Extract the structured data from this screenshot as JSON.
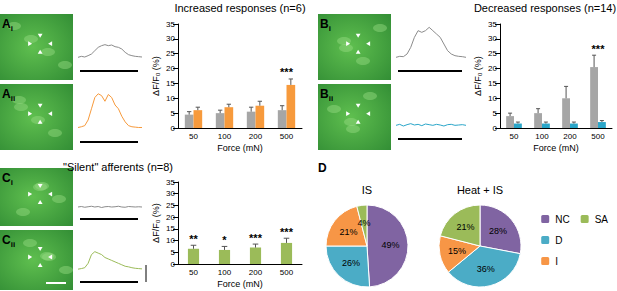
{
  "panel_labels": [
    {
      "letter": "A",
      "sub": "i"
    },
    {
      "letter": "A",
      "sub": "ii"
    },
    {
      "letter": "B",
      "sub": "i"
    },
    {
      "letter": "B",
      "sub": "ii"
    },
    {
      "letter": "C",
      "sub": "i"
    },
    {
      "letter": "C",
      "sub": "ii"
    },
    {
      "letter": "D"
    }
  ],
  "chart_data": [
    {
      "type": "line",
      "color": "#8c8c8c",
      "tick_labels": false,
      "ylim": [
        -2,
        10
      ],
      "values": [
        0,
        0.3,
        0.1,
        0.5,
        1,
        2,
        3,
        3.5,
        3.8,
        3.5,
        3.7,
        3.2,
        3,
        2.5,
        1.5,
        0.8,
        0.5,
        0.3,
        0.2,
        0.1
      ]
    },
    {
      "type": "line",
      "color": "#f79a3c",
      "tick_labels": false,
      "ylim": [
        -2,
        10
      ],
      "values": [
        0,
        0.2,
        0.5,
        2,
        5,
        8,
        9,
        8.5,
        7,
        8.8,
        8,
        6,
        5,
        3,
        1.5,
        0.5,
        0.2,
        0.1,
        0,
        0
      ]
    },
    {
      "type": "line",
      "color": "#8c8c8c",
      "tick_labels": false,
      "ylim": [
        -2,
        10
      ],
      "values": [
        0,
        0.3,
        0.2,
        1,
        3,
        6,
        8,
        7.5,
        8,
        9,
        8,
        7,
        6,
        4,
        2,
        1,
        0.5,
        0.3,
        0.2,
        0
      ]
    },
    {
      "type": "line",
      "color": "#2aa6c9",
      "tick_labels": false,
      "ylim": [
        -2,
        10
      ],
      "values": [
        0,
        0.3,
        -0.2,
        0.2,
        0.5,
        0.1,
        0.3,
        -0.1,
        0.4,
        0.2,
        0,
        0.3,
        0.1,
        -0.2,
        0.2,
        0.3,
        0,
        0.1,
        0.2,
        0
      ]
    },
    {
      "type": "line",
      "color": "#8c8c8c",
      "tick_labels": false,
      "ylim": [
        -2,
        10
      ],
      "values": [
        0,
        0.2,
        -0.1,
        0.1,
        0.3,
        0,
        0.2,
        -0.2,
        0.1,
        0.2,
        0,
        0.1,
        0.3,
        0,
        -0.1,
        0.2,
        0.1,
        0,
        0.1,
        0
      ]
    },
    {
      "type": "line",
      "color": "#9bbb59",
      "tick_labels": false,
      "ylim": [
        -2,
        10
      ],
      "values": [
        0,
        0.2,
        0.5,
        2,
        5,
        6,
        5.5,
        5,
        4,
        3.5,
        3,
        2.5,
        2,
        1.5,
        1,
        0.8,
        0.5,
        0.3,
        0.2,
        0.1
      ]
    },
    {
      "type": "bar",
      "title": "Increased responses (n=6)",
      "x_label": "Force (mN)",
      "y_label": "ΔF/F₀ (%)",
      "categories": [
        "50",
        "100",
        "200",
        "500"
      ],
      "series": [
        {
          "color": "#a6a6a6",
          "values": [
            4.5,
            5,
            5.5,
            6
          ],
          "errors": [
            1,
            1,
            1.5,
            1.5
          ]
        },
        {
          "color": "#f79a3c",
          "values": [
            6,
            7,
            7.5,
            14.5
          ],
          "errors": [
            1,
            1,
            1.5,
            2
          ]
        }
      ],
      "annotations": [
        null,
        null,
        null,
        "***"
      ],
      "ylim": [
        0,
        35
      ],
      "yticks": [
        0,
        5,
        10,
        15,
        20,
        25,
        30,
        35
      ],
      "grid": false
    },
    {
      "type": "bar",
      "title": "Decreased responses (n=14)",
      "x_label": "Force (mN)",
      "y_label": "ΔF/F₀ (%)",
      "categories": [
        "50",
        "100",
        "200",
        "500"
      ],
      "series": [
        {
          "color": "#a6a6a6",
          "values": [
            4,
            5,
            10,
            20.5
          ],
          "errors": [
            1,
            1.5,
            4,
            4
          ]
        },
        {
          "color": "#2aa6c9",
          "values": [
            1.5,
            1.5,
            1.5,
            2
          ],
          "errors": [
            0.5,
            0.5,
            0.5,
            0.5
          ]
        }
      ],
      "annotations": [
        null,
        null,
        null,
        "***"
      ],
      "ylim": [
        0,
        35
      ],
      "yticks": [
        0,
        5,
        10,
        15,
        20,
        25,
        30,
        35
      ],
      "grid": false
    },
    {
      "type": "bar",
      "title": "\"Silent\" afferents (n=8)",
      "x_label": "Force (mN)",
      "y_label": "ΔF/F₀ (%)",
      "categories": [
        "50",
        "100",
        "200",
        "500"
      ],
      "series": [
        {
          "color": "#9bbb59",
          "values": [
            6.5,
            6,
            7,
            9
          ],
          "errors": [
            1.5,
            1.5,
            1.5,
            2
          ]
        }
      ],
      "annotations": [
        "**",
        "*",
        "***",
        "***"
      ],
      "ylim": [
        0,
        35
      ],
      "yticks": [
        0,
        5,
        10,
        15,
        20,
        25,
        30,
        35
      ],
      "grid": false
    },
    {
      "type": "pie",
      "title": "IS",
      "categories": [
        "NC",
        "D",
        "I",
        "SA"
      ],
      "values": [
        49,
        26,
        21,
        4
      ],
      "value_labels": [
        "49%",
        "26%",
        "21%",
        "4%"
      ],
      "colors": [
        "#8064a2",
        "#4bacc6",
        "#f79646",
        "#9bbb59"
      ],
      "data_labels": true,
      "legend": "right"
    },
    {
      "type": "pie",
      "title": "Heat + IS",
      "categories": [
        "NC",
        "D",
        "I",
        "SA"
      ],
      "values": [
        28,
        36,
        15,
        21
      ],
      "value_labels": [
        "28%",
        "36%",
        "15%",
        "21%"
      ],
      "colors": [
        "#8064a2",
        "#4bacc6",
        "#f79646",
        "#9bbb59"
      ],
      "data_labels": true,
      "legend": "right"
    }
  ]
}
